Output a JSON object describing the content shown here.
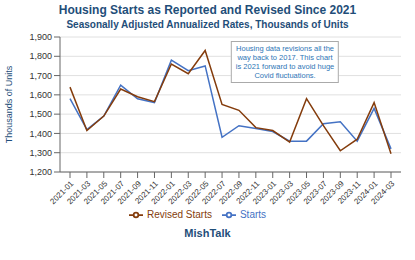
{
  "chart_data": {
    "type": "line",
    "title": "Housing Starts as Reported and Revised Since 2021",
    "subtitle": "Seasonally Adjusted Annualized Rates, Thousands of Units",
    "ylabel": "Thousands of Units",
    "footer": "MishTalk",
    "annotation": "Housing data revisions all the\nway back to 2017. This chart\nis 2021 forward to avoid huge\nCovid fluctuations.",
    "title_color": "#1F4E79",
    "subtitle_color": "#1F4E79",
    "footer_color": "#1F4E79",
    "annotation_color": "#2E75B6",
    "categories": [
      "2021-01",
      "2021-03",
      "2021-05",
      "2021-07",
      "2021-09",
      "2021-11",
      "2022-01",
      "2022-03",
      "2022-05",
      "2022-07",
      "2022-09",
      "2022-11",
      "2023-01",
      "2023-03",
      "2023-05",
      "2023-07",
      "2023-09",
      "2023-11",
      "2024-01",
      "2024-03"
    ],
    "series": [
      {
        "name": "Starts",
        "color": "#4472C4",
        "values": [
          1580,
          1420,
          1490,
          1650,
          1580,
          1560,
          1780,
          1725,
          1750,
          1380,
          1440,
          1425,
          1410,
          1360,
          1360,
          1450,
          1460,
          1360,
          1530,
          1320
        ]
      },
      {
        "name": "Revised Starts",
        "color": "#843C0C",
        "values": [
          1640,
          1415,
          1490,
          1630,
          1590,
          1565,
          1760,
          1710,
          1830,
          1550,
          1520,
          1430,
          1415,
          1355,
          1580,
          1440,
          1310,
          1370,
          1560,
          1295
        ]
      }
    ],
    "ylim": [
      1200,
      1900
    ],
    "yticks": [
      {
        "value": 1200,
        "label": "1,200"
      },
      {
        "value": 1300,
        "label": "1,300"
      },
      {
        "value": 1400,
        "label": "1,400"
      },
      {
        "value": 1500,
        "label": "1,500"
      },
      {
        "value": 1600,
        "label": "1,600"
      },
      {
        "value": 1700,
        "label": "1,700"
      },
      {
        "value": 1800,
        "label": "1,800"
      },
      {
        "value": 1900,
        "label": "1,900"
      }
    ],
    "grid": true,
    "legend": "bottom"
  }
}
